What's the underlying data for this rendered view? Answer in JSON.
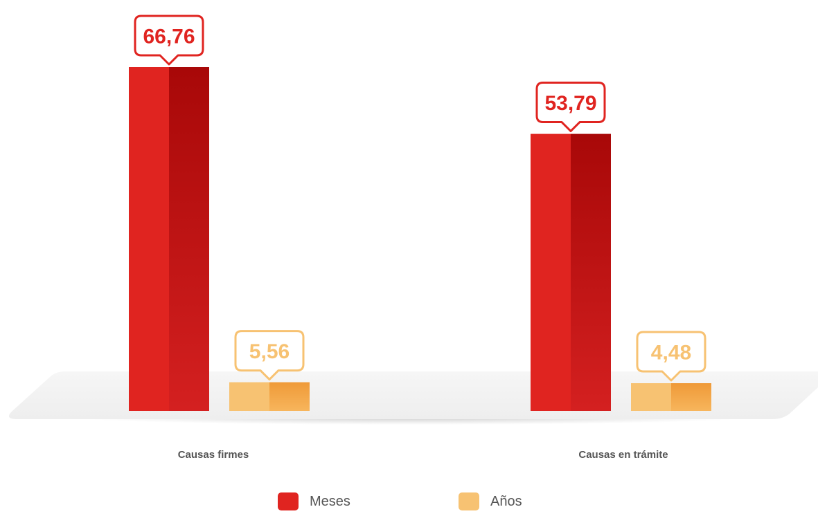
{
  "chart_data": {
    "type": "bar",
    "categories": [
      "Causas firmes",
      "Causas en trámite"
    ],
    "series": [
      {
        "name": "Meses",
        "values": [
          "66,76",
          "53,79"
        ],
        "numeric": [
          66.76,
          53.79
        ],
        "color": "#e02420",
        "shade": "#a80808"
      },
      {
        "name": "Años",
        "values": [
          "5,56",
          "4,48"
        ],
        "numeric": [
          5.56,
          4.48
        ],
        "color": "#f7c272",
        "shade": "#f0a040"
      }
    ],
    "title": "",
    "xlabel": "",
    "ylabel": "",
    "ylim": [
      0,
      66.76
    ],
    "grid": false,
    "legend_position": "bottom"
  },
  "legend": {
    "items": [
      {
        "label": "Meses",
        "color": "#e02420"
      },
      {
        "label": "Años",
        "color": "#f7c272"
      }
    ]
  }
}
